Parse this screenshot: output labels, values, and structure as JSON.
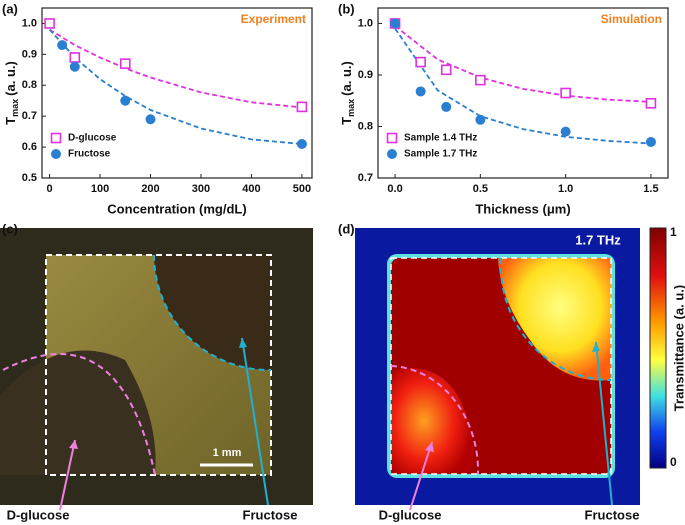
{
  "chart_data": [
    {
      "type": "scatter",
      "panel": "(a)",
      "annotation": "Experiment",
      "annotation_color": "#f08020",
      "x_label": "Concentration (mg/dL)",
      "y_label": "T",
      "y_label_sub": "max",
      "y_label_rest": "(a. u.)",
      "xlim": [
        -15,
        520
      ],
      "ylim": [
        0.5,
        1.05
      ],
      "xticks": [
        0,
        100,
        200,
        300,
        400,
        500
      ],
      "yticks": [
        0.5,
        0.6,
        0.7,
        0.8,
        0.9,
        {
          "value": 1,
          "label": "1.0"
        }
      ],
      "legend": "lower left",
      "series": [
        {
          "name": "D-glucose",
          "color": "#e030e0",
          "marker": "square-open",
          "x": [
            0,
            50,
            150,
            500
          ],
          "values": [
            1.0,
            0.89,
            0.87,
            0.73
          ],
          "fit_x": [
            0,
            50,
            100,
            150,
            200,
            300,
            400,
            500
          ],
          "fit_values": [
            0.98,
            0.93,
            0.89,
            0.855,
            0.825,
            0.777,
            0.745,
            0.728
          ]
        },
        {
          "name": "Fructose",
          "color": "#2a7fd0",
          "marker": "circle",
          "x": [
            25,
            50,
            150,
            200,
            500
          ],
          "values": [
            0.93,
            0.86,
            0.75,
            0.69,
            0.61
          ],
          "fit_x": [
            0,
            50,
            100,
            150,
            200,
            300,
            400,
            500
          ],
          "fit_values": [
            0.98,
            0.89,
            0.82,
            0.765,
            0.72,
            0.66,
            0.625,
            0.61
          ]
        }
      ]
    },
    {
      "type": "scatter",
      "panel": "(b)",
      "annotation": "Simulation",
      "annotation_color": "#f08020",
      "x_label": "Thickness (μm)",
      "y_label": "T",
      "y_label_sub": "max",
      "y_label_rest": "(a. u.)",
      "xlim": [
        -0.1,
        1.6
      ],
      "ylim": [
        0.7,
        1.03
      ],
      "xticks": [
        {
          "value": 0,
          "label": "0.0"
        },
        0.5,
        {
          "value": 1,
          "label": "1.0"
        },
        1.5
      ],
      "yticks": [
        0.7,
        0.8,
        0.9,
        {
          "value": 1,
          "label": "1.0"
        }
      ],
      "legend": "lower left",
      "series": [
        {
          "name": "Sample 1.4 THz",
          "color": "#e030e0",
          "marker": "square-open",
          "x": [
            0,
            0.15,
            0.3,
            0.5,
            1.0,
            1.5
          ],
          "values": [
            1.0,
            0.925,
            0.91,
            0.89,
            0.865,
            0.845
          ],
          "fit_x": [
            0,
            0.25,
            0.5,
            0.75,
            1,
            1.25,
            1.5
          ],
          "fit_values": [
            0.995,
            0.93,
            0.895,
            0.873,
            0.86,
            0.852,
            0.848
          ]
        },
        {
          "name": "Sample 1.7 THz",
          "color": "#2a7fd0",
          "marker": "circle",
          "x": [
            0,
            0.15,
            0.3,
            0.5,
            1.0,
            1.5
          ],
          "values": [
            1.0,
            0.868,
            0.838,
            0.813,
            0.79,
            0.77
          ],
          "fit_x": [
            0,
            0.25,
            0.5,
            0.75,
            1,
            1.25,
            1.5
          ],
          "fit_values": [
            0.99,
            0.87,
            0.82,
            0.795,
            0.78,
            0.772,
            0.767
          ]
        }
      ]
    }
  ],
  "images": [
    {
      "panel": "(c)",
      "scale_bar": "1 mm",
      "arrows": [
        "D-glucose",
        "Fructose"
      ]
    },
    {
      "panel": "(d)",
      "title": "1.7 THz",
      "colorbar": {
        "label": "Transmittance (a. u.)",
        "ticks": [
          0,
          1
        ]
      },
      "arrows": [
        "D-glucose",
        "Fructose"
      ]
    }
  ]
}
